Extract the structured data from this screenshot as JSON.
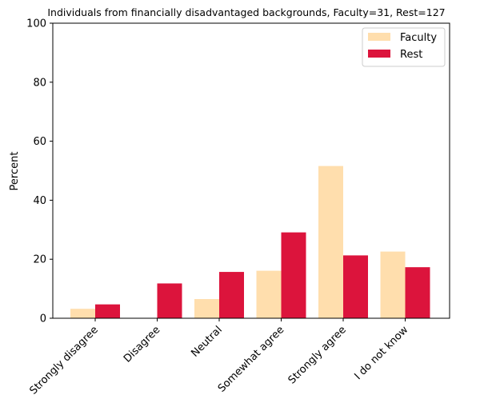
{
  "chart_data": {
    "type": "bar",
    "title": "Individuals from financially disadvantaged backgrounds, Faculty=31, Rest=127",
    "xlabel": "",
    "ylabel": "Percent",
    "ylim": [
      0,
      100
    ],
    "yticks": [
      0,
      20,
      40,
      60,
      80,
      100
    ],
    "categories": [
      "Strongly disagree",
      "Disagree",
      "Neutral",
      "Somewhat agree",
      "Strongly agree",
      "I do not know"
    ],
    "series": [
      {
        "name": "Faculty",
        "color": "#FFDEAD",
        "values": [
          3.2,
          0.0,
          6.5,
          16.1,
          51.6,
          22.6
        ]
      },
      {
        "name": "Rest",
        "color": "#DC143C",
        "values": [
          4.7,
          11.8,
          15.7,
          29.1,
          21.3,
          17.3
        ]
      }
    ],
    "legend_position": "top-right"
  }
}
